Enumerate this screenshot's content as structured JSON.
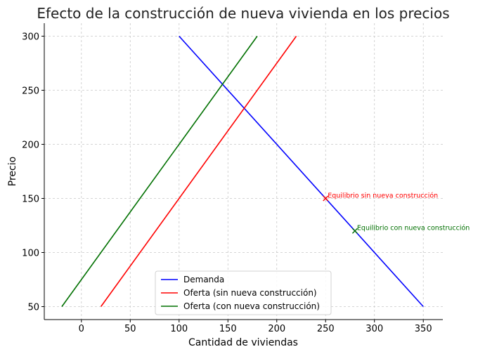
{
  "chart_data": {
    "type": "line",
    "title": "Efecto de la construcción de nueva vivienda en los precios",
    "xlabel": "Cantidad de viviendas",
    "ylabel": "Precio",
    "xlim": [
      -38,
      370
    ],
    "ylim": [
      38,
      312
    ],
    "xticks": [
      0,
      50,
      100,
      150,
      200,
      250,
      300,
      350
    ],
    "yticks": [
      50,
      100,
      150,
      200,
      250,
      300
    ],
    "grid": true,
    "legend_position": "bottom-center",
    "series": [
      {
        "name": "Demanda",
        "color": "#0000ff",
        "x": [
          100,
          350
        ],
        "y": [
          300,
          50
        ]
      },
      {
        "name": "Oferta (sin nueva construcción)",
        "color": "#ff0000",
        "x": [
          20,
          220
        ],
        "y": [
          50,
          300
        ]
      },
      {
        "name": "Oferta (con nueva construcción)",
        "color": "#007000",
        "x": [
          -20,
          180
        ],
        "y": [
          50,
          300
        ]
      }
    ],
    "annotations": [
      {
        "text": "Equilibrio sin nueva construcción",
        "x": 250,
        "y": 150,
        "color": "#ff0000",
        "marker": "x"
      },
      {
        "text": "Equilibrio con nueva construcción",
        "x": 280,
        "y": 120,
        "color": "#007000",
        "marker": "x"
      }
    ]
  }
}
